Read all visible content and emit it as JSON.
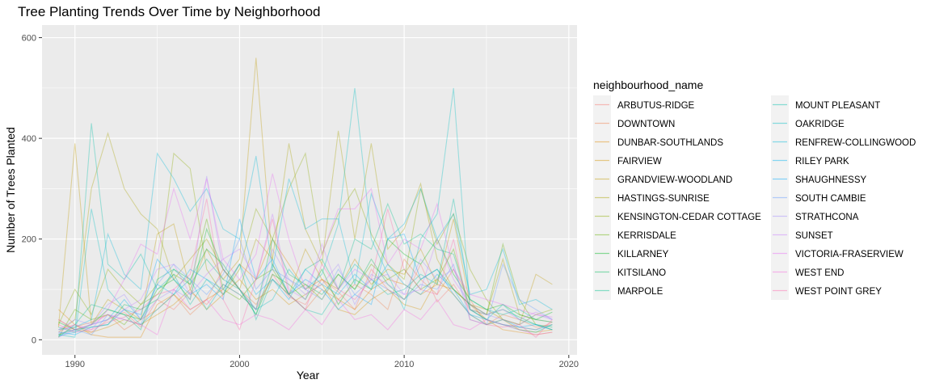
{
  "chart_data": {
    "type": "line",
    "title": "Tree Planting Trends Over Time by Neighborhood",
    "xlabel": "Year",
    "ylabel": "Number of Trees Planted",
    "xlim": [
      1988,
      2020.5
    ],
    "ylim": [
      -30,
      625
    ],
    "x_ticks": [
      1990,
      2000,
      2010,
      2020
    ],
    "y_ticks": [
      0,
      200,
      400,
      600
    ],
    "grid": true,
    "legend": {
      "title": "neighbourhood_name",
      "placement": "right",
      "columns": 2
    },
    "x": [
      1989,
      1990,
      1991,
      1992,
      1993,
      1994,
      1995,
      1996,
      1997,
      1998,
      1999,
      2000,
      2001,
      2002,
      2003,
      2004,
      2005,
      2006,
      2007,
      2008,
      2009,
      2010,
      2011,
      2012,
      2013,
      2014,
      2015,
      2016,
      2017,
      2018,
      2019
    ],
    "series": [
      {
        "name": "ARBUTUS-RIDGE",
        "color": "#F8766D",
        "values": [
          20,
          30,
          15,
          40,
          55,
          25,
          80,
          60,
          95,
          70,
          110,
          90,
          60,
          130,
          85,
          70,
          120,
          95,
          60,
          140,
          100,
          80,
          150,
          75,
          110,
          60,
          40,
          30,
          25,
          20,
          35
        ]
      },
      {
        "name": "DOWNTOWN",
        "color": "#EF7F49",
        "values": [
          10,
          25,
          35,
          50,
          20,
          40,
          60,
          90,
          50,
          80,
          140,
          100,
          70,
          120,
          90,
          60,
          100,
          80,
          110,
          90,
          60,
          160,
          120,
          90,
          140,
          80,
          30,
          50,
          40,
          25,
          30
        ]
      },
      {
        "name": "DUNBAR-SOUTHLANDS",
        "color": "#E38900",
        "values": [
          60,
          30,
          10,
          5,
          5,
          5,
          70,
          90,
          60,
          80,
          100,
          150,
          120,
          200,
          150,
          100,
          120,
          80,
          60,
          100,
          120,
          110,
          90,
          110,
          100,
          70,
          40,
          20,
          15,
          10,
          15
        ]
      },
      {
        "name": "FAIRVIEW",
        "color": "#D39200",
        "values": [
          40,
          20,
          15,
          25,
          40,
          30,
          50,
          70,
          100,
          60,
          90,
          120,
          80,
          100,
          70,
          90,
          110,
          60,
          50,
          80,
          100,
          70,
          60,
          120,
          90,
          50,
          30,
          40,
          20,
          15,
          20
        ]
      },
      {
        "name": "GRANDVIEW-WOODLAND",
        "color": "#C09B00",
        "values": [
          25,
          390,
          30,
          80,
          60,
          40,
          210,
          230,
          100,
          180,
          120,
          160,
          560,
          150,
          90,
          180,
          120,
          100,
          160,
          110,
          140,
          130,
          180,
          110,
          240,
          70,
          60,
          40,
          30,
          130,
          110
        ]
      },
      {
        "name": "HASTINGS-SUNRISE",
        "color": "#A8A400",
        "values": [
          15,
          40,
          300,
          410,
          300,
          250,
          220,
          120,
          160,
          200,
          140,
          100,
          200,
          160,
          390,
          220,
          150,
          415,
          200,
          390,
          180,
          220,
          310,
          160,
          100,
          70,
          50,
          160,
          50,
          40,
          35
        ]
      },
      {
        "name": "KENSINGTON-CEDAR COTTAGE",
        "color": "#8CAB00",
        "values": [
          30,
          100,
          50,
          140,
          100,
          70,
          110,
          370,
          340,
          140,
          90,
          140,
          260,
          200,
          300,
          370,
          170,
          250,
          300,
          210,
          150,
          120,
          300,
          190,
          250,
          140,
          80,
          40,
          30,
          50,
          60
        ]
      },
      {
        "name": "KERRISDALE",
        "color": "#64B200",
        "values": [
          5,
          60,
          40,
          50,
          30,
          70,
          90,
          130,
          110,
          240,
          100,
          80,
          120,
          140,
          90,
          110,
          80,
          130,
          100,
          150,
          120,
          140,
          100,
          120,
          180,
          60,
          50,
          190,
          80,
          30,
          20
        ]
      },
      {
        "name": "KILLARNEY",
        "color": "#00B81F",
        "values": [
          35,
          20,
          30,
          60,
          50,
          40,
          100,
          120,
          80,
          220,
          140,
          100,
          50,
          130,
          110,
          80,
          140,
          70,
          120,
          100,
          200,
          170,
          150,
          200,
          130,
          80,
          60,
          70,
          50,
          40,
          55
        ]
      },
      {
        "name": "KITSILANO",
        "color": "#00BD5C",
        "values": [
          10,
          20,
          25,
          30,
          70,
          60,
          80,
          140,
          120,
          180,
          150,
          100,
          60,
          200,
          130,
          110,
          90,
          130,
          100,
          160,
          110,
          80,
          120,
          140,
          100,
          70,
          50,
          60,
          45,
          30,
          25
        ]
      },
      {
        "name": "MARPOLE",
        "color": "#00C08B",
        "values": [
          5,
          30,
          70,
          60,
          50,
          20,
          120,
          140,
          110,
          160,
          120,
          100,
          50,
          150,
          90,
          140,
          160,
          100,
          200,
          180,
          270,
          190,
          210,
          180,
          170,
          60,
          40,
          30,
          20,
          15,
          30
        ]
      },
      {
        "name": "MOUNT PLEASANT",
        "color": "#00C1AA",
        "values": [
          25,
          15,
          430,
          150,
          120,
          170,
          100,
          130,
          70,
          120,
          90,
          150,
          40,
          120,
          90,
          60,
          50,
          100,
          150,
          120,
          90,
          100,
          130,
          110,
          280,
          80,
          60,
          50,
          60,
          40,
          35
        ]
      },
      {
        "name": "OAKRIDGE",
        "color": "#00BFC4",
        "values": [
          10,
          5,
          260,
          100,
          60,
          30,
          60,
          90,
          120,
          60,
          110,
          90,
          60,
          80,
          140,
          100,
          130,
          230,
          500,
          200,
          130,
          60,
          200,
          250,
          500,
          60,
          40,
          70,
          40,
          30,
          20
        ]
      },
      {
        "name": "RENFREW-COLLINGWOOD",
        "color": "#00BBDA",
        "values": [
          20,
          25,
          40,
          210,
          130,
          100,
          370,
          320,
          255,
          300,
          220,
          200,
          365,
          140,
          320,
          220,
          240,
          240,
          110,
          290,
          200,
          230,
          300,
          200,
          250,
          90,
          100,
          180,
          70,
          80,
          60
        ]
      },
      {
        "name": "RILEY PARK",
        "color": "#00B4EF",
        "values": [
          8,
          15,
          30,
          40,
          80,
          40,
          110,
          90,
          140,
          120,
          100,
          150,
          90,
          120,
          80,
          140,
          110,
          90,
          130,
          100,
          150,
          110,
          90,
          130,
          100,
          50,
          40,
          30,
          25,
          20,
          30
        ]
      },
      {
        "name": "SHAUGHNESSY",
        "color": "#00A9FF",
        "values": [
          15,
          10,
          25,
          30,
          60,
          50,
          160,
          120,
          90,
          110,
          80,
          240,
          120,
          160,
          90,
          120,
          100,
          60,
          90,
          70,
          200,
          210,
          120,
          140,
          90,
          50,
          30,
          40,
          25,
          30,
          20
        ]
      },
      {
        "name": "SOUTH CAMBIE",
        "color": "#619CFF",
        "values": [
          12,
          20,
          10,
          50,
          40,
          30,
          110,
          150,
          120,
          90,
          130,
          200,
          100,
          140,
          120,
          100,
          80,
          140,
          90,
          120,
          100,
          80,
          110,
          100,
          150,
          40,
          30,
          150,
          80,
          60,
          40
        ]
      },
      {
        "name": "STRATHCONA",
        "color": "#A58AFF",
        "values": [
          20,
          40,
          30,
          70,
          90,
          40,
          80,
          100,
          80,
          325,
          140,
          100,
          60,
          180,
          120,
          90,
          110,
          150,
          70,
          130,
          110,
          90,
          160,
          120,
          140,
          60,
          50,
          40,
          30,
          50,
          40
        ]
      },
      {
        "name": "SUNSET",
        "color": "#C77CFF",
        "values": [
          5,
          20,
          30,
          40,
          60,
          80,
          140,
          150,
          90,
          130,
          160,
          180,
          120,
          250,
          100,
          80,
          190,
          100,
          140,
          120,
          130,
          90,
          100,
          200,
          120,
          70,
          50,
          60,
          40,
          55,
          40
        ]
      },
      {
        "name": "VICTORIA-FRASERVIEW",
        "color": "#E76BF3",
        "values": [
          15,
          30,
          20,
          60,
          120,
          190,
          170,
          300,
          200,
          320,
          160,
          120,
          170,
          330,
          200,
          100,
          170,
          260,
          260,
          300,
          150,
          200,
          180,
          270,
          140,
          90,
          80,
          70,
          60,
          50,
          45
        ]
      },
      {
        "name": "WEST END",
        "color": "#F763E0",
        "values": [
          40,
          20,
          30,
          50,
          40,
          30,
          10,
          100,
          60,
          80,
          40,
          30,
          50,
          40,
          20,
          60,
          30,
          80,
          40,
          50,
          20,
          60,
          40,
          80,
          30,
          20,
          40,
          30,
          20,
          10,
          15
        ]
      },
      {
        "name": "WEST POINT GREY",
        "color": "#FF65AC",
        "values": [
          30,
          15,
          20,
          35,
          45,
          60,
          90,
          100,
          130,
          280,
          80,
          20,
          120,
          240,
          90,
          60,
          150,
          100,
          80,
          120,
          260,
          140,
          100,
          90,
          200,
          40,
          30,
          25,
          30,
          5,
          40
        ]
      }
    ]
  }
}
